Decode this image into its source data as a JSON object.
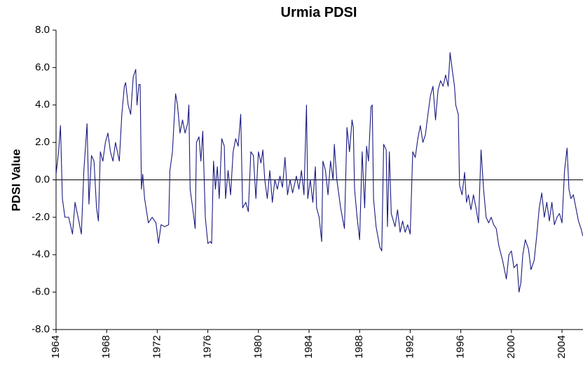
{
  "chart_data": {
    "type": "line",
    "title": "Urmia PDSI",
    "y_label": "PDSI Value",
    "x": [
      1964.0,
      1964.2,
      1964.35,
      1964.5,
      1964.7,
      1965.0,
      1965.3,
      1965.5,
      1965.8,
      1966.0,
      1966.2,
      1966.45,
      1966.6,
      1966.8,
      1967.0,
      1967.2,
      1967.35,
      1967.5,
      1967.7,
      1967.9,
      1968.1,
      1968.3,
      1968.5,
      1968.7,
      1969.0,
      1969.2,
      1969.4,
      1969.5,
      1969.7,
      1969.9,
      1970.1,
      1970.3,
      1970.4,
      1970.55,
      1970.65,
      1970.75,
      1970.85,
      1971.0,
      1971.3,
      1971.6,
      1971.9,
      1972.1,
      1972.3,
      1972.6,
      1972.9,
      1973.0,
      1973.2,
      1973.45,
      1973.6,
      1973.8,
      1974.0,
      1974.2,
      1974.4,
      1974.5,
      1974.6,
      1974.8,
      1975.0,
      1975.1,
      1975.3,
      1975.45,
      1975.6,
      1975.8,
      1976.0,
      1976.2,
      1976.3,
      1976.45,
      1976.6,
      1976.75,
      1976.9,
      1977.1,
      1977.3,
      1977.4,
      1977.6,
      1977.8,
      1978.0,
      1978.2,
      1978.4,
      1978.6,
      1978.75,
      1979.0,
      1979.2,
      1979.4,
      1979.6,
      1979.8,
      1980.0,
      1980.2,
      1980.35,
      1980.5,
      1980.7,
      1980.9,
      1981.1,
      1981.3,
      1981.5,
      1981.7,
      1981.9,
      1982.1,
      1982.3,
      1982.5,
      1982.7,
      1983.0,
      1983.2,
      1983.4,
      1983.6,
      1983.8,
      1983.9,
      1984.1,
      1984.3,
      1984.5,
      1984.6,
      1984.8,
      1985.0,
      1985.1,
      1985.3,
      1985.5,
      1985.7,
      1985.9,
      1986.0,
      1986.2,
      1986.5,
      1986.8,
      1987.0,
      1987.2,
      1987.4,
      1987.5,
      1987.6,
      1987.8,
      1988.0,
      1988.2,
      1988.4,
      1988.55,
      1988.7,
      1988.9,
      1989.0,
      1989.1,
      1989.3,
      1989.6,
      1989.75,
      1989.9,
      1990.1,
      1990.2,
      1990.35,
      1990.5,
      1990.8,
      1991.0,
      1991.2,
      1991.4,
      1991.6,
      1991.8,
      1992.0,
      1992.2,
      1992.4,
      1992.6,
      1992.8,
      1993.0,
      1993.2,
      1993.4,
      1993.6,
      1993.8,
      1994.0,
      1994.2,
      1994.4,
      1994.6,
      1994.8,
      1995.0,
      1995.15,
      1995.3,
      1995.5,
      1995.6,
      1995.8,
      1995.9,
      1996.1,
      1996.3,
      1996.45,
      1996.6,
      1996.8,
      1997.0,
      1997.2,
      1997.4,
      1997.6,
      1997.8,
      1998.0,
      1998.2,
      1998.4,
      1998.6,
      1998.8,
      1999.0,
      1999.3,
      1999.6,
      1999.8,
      2000.0,
      2000.2,
      2000.45,
      2000.6,
      2000.75,
      2000.9,
      2001.1,
      2001.35,
      2001.55,
      2001.8,
      2002.0,
      2002.2,
      2002.4,
      2002.6,
      2002.8,
      2003.0,
      2003.2,
      2003.4,
      2003.6,
      2003.8,
      2004.0,
      2004.2,
      2004.4,
      2004.55,
      2004.7,
      2004.9,
      2005.1,
      2005.3,
      2005.5,
      2005.65
    ],
    "series": [
      {
        "name": "Urmia PDSI",
        "color": "#1a1a80",
        "values": [
          0.3,
          1.5,
          2.9,
          -1.0,
          -2.0,
          -2.0,
          -2.9,
          -1.2,
          -2.2,
          -2.9,
          0.5,
          3.0,
          -1.3,
          1.3,
          1.0,
          -1.5,
          -2.2,
          1.5,
          1.0,
          2.0,
          2.5,
          1.5,
          1.0,
          2.0,
          1.0,
          3.5,
          5.0,
          5.2,
          4.0,
          3.5,
          5.5,
          5.9,
          4.0,
          5.1,
          5.1,
          -0.5,
          0.3,
          -1.0,
          -2.3,
          -2.0,
          -2.3,
          -3.4,
          -2.4,
          -2.5,
          -2.4,
          0.5,
          1.5,
          4.6,
          4.0,
          2.5,
          3.2,
          2.5,
          3.0,
          4.0,
          -0.5,
          -1.5,
          -2.6,
          2.0,
          2.3,
          1.0,
          2.6,
          -2.0,
          -3.4,
          -3.3,
          -3.4,
          1.0,
          -0.5,
          0.7,
          -1.0,
          2.2,
          1.8,
          -1.0,
          0.5,
          -0.8,
          1.5,
          2.2,
          1.8,
          3.5,
          -1.5,
          -1.2,
          -1.7,
          1.5,
          1.3,
          -1.0,
          1.5,
          0.9,
          1.6,
          0.0,
          -1.0,
          0.5,
          -1.2,
          0.0,
          -0.5,
          0.2,
          -0.4,
          1.2,
          -0.8,
          0.0,
          -0.7,
          0.2,
          -0.5,
          0.5,
          -0.8,
          4.0,
          -1.0,
          0.0,
          -1.2,
          0.7,
          -1.5,
          -2.0,
          -3.3,
          1.0,
          0.5,
          -0.8,
          1.0,
          0.0,
          1.9,
          0.0,
          -1.5,
          -2.6,
          2.8,
          1.5,
          3.2,
          2.8,
          -0.5,
          -2.0,
          -3.2,
          1.5,
          -1.5,
          1.8,
          1.0,
          3.9,
          4.0,
          -1.0,
          -2.5,
          -3.6,
          -3.8,
          1.9,
          1.6,
          -2.5,
          1.5,
          -1.8,
          -2.5,
          -1.6,
          -2.8,
          -2.2,
          -2.8,
          -2.4,
          -2.9,
          1.5,
          1.2,
          2.2,
          2.9,
          2.0,
          2.4,
          3.5,
          4.5,
          5.0,
          3.2,
          4.8,
          5.3,
          5.0,
          5.6,
          5.0,
          6.8,
          6.0,
          5.0,
          4.0,
          3.5,
          -0.3,
          -0.8,
          0.4,
          -1.2,
          -0.8,
          -1.6,
          -0.8,
          -1.5,
          -2.3,
          1.6,
          -0.5,
          -2.0,
          -2.3,
          -2.0,
          -2.4,
          -2.6,
          -3.5,
          -4.3,
          -5.3,
          -4.0,
          -3.8,
          -4.7,
          -4.5,
          -6.0,
          -5.5,
          -4.0,
          -3.2,
          -3.7,
          -4.8,
          -4.3,
          -3.0,
          -1.5,
          -0.7,
          -2.0,
          -1.2,
          -2.2,
          -1.2,
          -2.4,
          -2.0,
          -1.8,
          -2.3,
          0.5,
          1.7,
          -0.5,
          -1.0,
          -0.8,
          -1.5,
          -2.2,
          -2.6,
          -3.0
        ]
      }
    ],
    "xlim": [
      1964,
      2005.66
    ],
    "xticks": [
      1964,
      1968,
      1972,
      1976,
      1980,
      1984,
      1988,
      1992,
      1996,
      2000,
      2004
    ],
    "ylim": [
      -8,
      8
    ],
    "yticks": [
      {
        "value": -8,
        "label": "-8.0"
      },
      {
        "value": -6,
        "label": "-6.0"
      },
      {
        "value": -4,
        "label": "-4.0"
      },
      {
        "value": -2,
        "label": "-2.0"
      },
      {
        "value": 0,
        "label": "0.0"
      },
      {
        "value": 2,
        "label": "2.0"
      },
      {
        "value": 4,
        "label": "4.0"
      },
      {
        "value": 6,
        "label": "6.0"
      },
      {
        "value": 8,
        "label": "8.0"
      }
    ],
    "grid": false
  }
}
